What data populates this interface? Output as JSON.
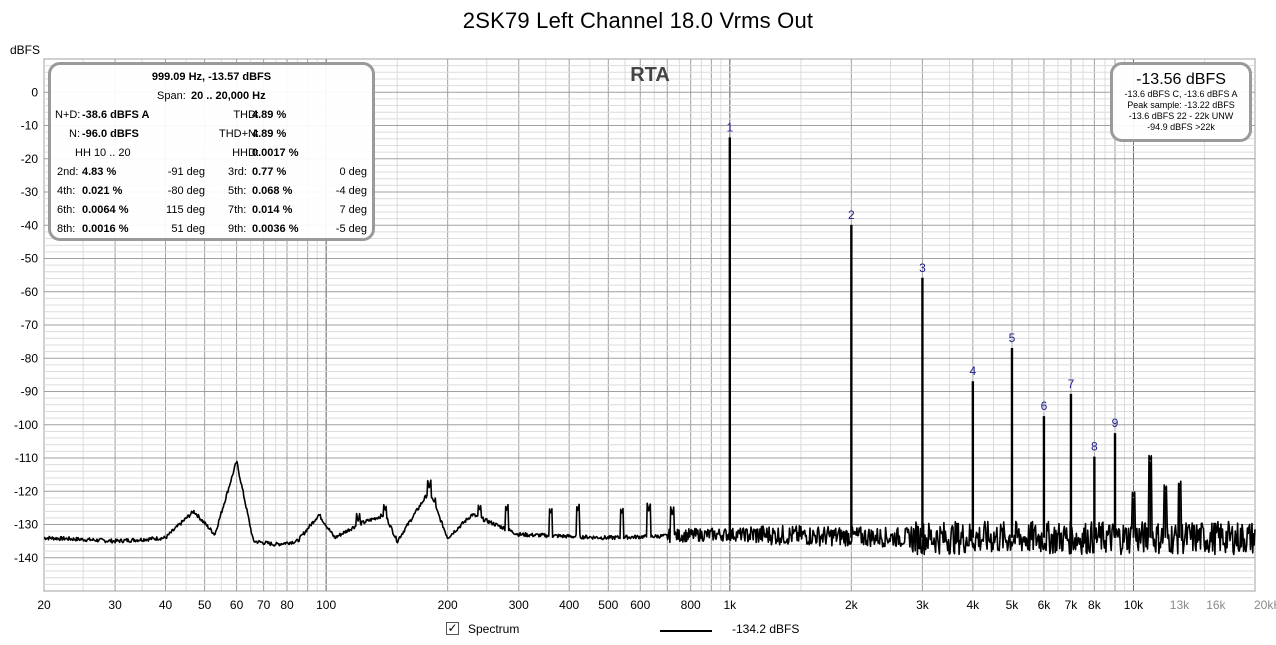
{
  "title": "2SK79 Left Channel 18.0 Vrms Out",
  "ylabel": "dBFS",
  "rta_label": "RTA",
  "info_panel": {
    "header": "999.09 Hz, -13.57 dBFS",
    "span_label": "Span:",
    "span_value": "20 .. 20,000 Hz",
    "nd_label": "N+D:",
    "nd_value": "-38.6 dBFS A",
    "thd_label": "THD:",
    "thd_value": "4.89 %",
    "n_label": "N:",
    "n_value": "-96.0 dBFS",
    "thdn_label": "THD+N:",
    "thdn_value": "4.89 %",
    "hh_label": "HH 10 .. 20",
    "hhd_label": "HHD:",
    "hhd_value": "0.0017 %",
    "harmonics": [
      {
        "l1": "2nd:",
        "v1": "4.83 %",
        "p1": "-91 deg",
        "l2": "3rd:",
        "v2": "0.77 %",
        "p2": "0 deg"
      },
      {
        "l1": "4th:",
        "v1": "0.021 %",
        "p1": "-80 deg",
        "l2": "5th:",
        "v2": "0.068 %",
        "p2": "-4 deg"
      },
      {
        "l1": "6th:",
        "v1": "0.0064 %",
        "p1": "115 deg",
        "l2": "7th:",
        "v2": "0.014 %",
        "p2": "7 deg"
      },
      {
        "l1": "8th:",
        "v1": "0.0016 %",
        "p1": "51 deg",
        "l2": "9th:",
        "v2": "0.0036 %",
        "p2": "-5 deg"
      }
    ]
  },
  "level_panel": {
    "main": "-13.56 dBFS",
    "lines": [
      "-13.6 dBFS C, -13.6 dBFS A",
      "Peak sample: -13.22 dBFS",
      "-13.6 dBFS 22 - 22k UNW",
      "-94.9 dBFS >22k"
    ]
  },
  "legend": {
    "checkbox_checked": true,
    "checkbox_label": "Spectrum",
    "series_value": "-134.2 dBFS"
  },
  "colors": {
    "trace": "#000000",
    "grid_major": "#a0a0a0",
    "grid_minor": "#dcdcdc",
    "harmonic_label": "#1c1c8c",
    "panel_border": "#9a9a9a"
  },
  "chart_data": {
    "type": "line",
    "x_scale": "log",
    "xlim": [
      20,
      20000
    ],
    "ylim": [
      -150,
      10
    ],
    "grid": true,
    "x_ticks": [
      20,
      30,
      40,
      50,
      60,
      70,
      80,
      100,
      200,
      300,
      400,
      500,
      600,
      800,
      1000,
      2000,
      3000,
      4000,
      5000,
      6000,
      7000,
      8000,
      10000,
      13000,
      16000,
      20000
    ],
    "x_tick_labels": [
      "20",
      "30",
      "40",
      "50",
      "60",
      "70",
      "80",
      "100",
      "200",
      "300",
      "400",
      "500",
      "600",
      "800",
      "1k",
      "2k",
      "3k",
      "4k",
      "5k",
      "6k",
      "7k",
      "8k",
      "10k",
      "13k",
      "16k",
      "20kHz"
    ],
    "x_light_ticks": [
      "13k",
      "16k",
      "20kHz"
    ],
    "y_ticks": [
      0,
      -10,
      -20,
      -30,
      -40,
      -50,
      -60,
      -70,
      -80,
      -90,
      -100,
      -110,
      -120,
      -130,
      -140
    ],
    "y_tick_labels": [
      "0",
      "-10",
      "-20",
      "-30",
      "-40",
      "-50",
      "-60",
      "-70",
      "-80",
      "-90",
      "-100",
      "-110",
      "-120",
      "-130",
      "-140"
    ],
    "noise_floor_points": [
      [
        20,
        -134
      ],
      [
        25,
        -134.5
      ],
      [
        30,
        -135
      ],
      [
        35,
        -134.5
      ],
      [
        40,
        -134
      ],
      [
        47,
        -126
      ],
      [
        53,
        -133
      ],
      [
        60,
        -111
      ],
      [
        66,
        -135
      ],
      [
        75,
        -136
      ],
      [
        85,
        -135
      ],
      [
        96,
        -127
      ],
      [
        105,
        -134
      ],
      [
        120,
        -130
      ],
      [
        140,
        -127
      ],
      [
        150,
        -135
      ],
      [
        180,
        -120
      ],
      [
        200,
        -134
      ],
      [
        230,
        -127
      ],
      [
        300,
        -133
      ],
      [
        500,
        -134
      ],
      [
        900,
        -133
      ],
      [
        1100,
        -133
      ],
      [
        3000,
        -134
      ],
      [
        20000,
        -134
      ]
    ],
    "hum_spurs": [
      [
        120,
        -129
      ],
      [
        140,
        -126
      ],
      [
        180,
        -119
      ],
      [
        185,
        -124
      ],
      [
        240,
        -126
      ],
      [
        280,
        -126
      ],
      [
        360,
        -127
      ],
      [
        420,
        -126
      ],
      [
        540,
        -127
      ],
      [
        630,
        -126
      ],
      [
        720,
        -127
      ]
    ],
    "harmonics": [
      {
        "label": "1",
        "freq": 1000,
        "level": -13.57
      },
      {
        "label": "2",
        "freq": 2000,
        "level": -39.9
      },
      {
        "label": "3",
        "freq": 3000,
        "level": -55.8
      },
      {
        "label": "4",
        "freq": 4000,
        "level": -86.9
      },
      {
        "label": "5",
        "freq": 5000,
        "level": -76.9
      },
      {
        "label": "6",
        "freq": 6000,
        "level": -97.4
      },
      {
        "label": "7",
        "freq": 7000,
        "level": -90.7
      },
      {
        "label": "8",
        "freq": 8000,
        "level": -109.6
      },
      {
        "label": "9",
        "freq": 9000,
        "level": -102.5
      }
    ],
    "extra_peaks": [
      [
        10000,
        -122
      ],
      [
        11000,
        -111
      ],
      [
        12000,
        -120
      ],
      [
        13000,
        -119
      ]
    ],
    "series": [
      {
        "name": "Spectrum",
        "value_label": "-134.2 dBFS"
      }
    ]
  }
}
